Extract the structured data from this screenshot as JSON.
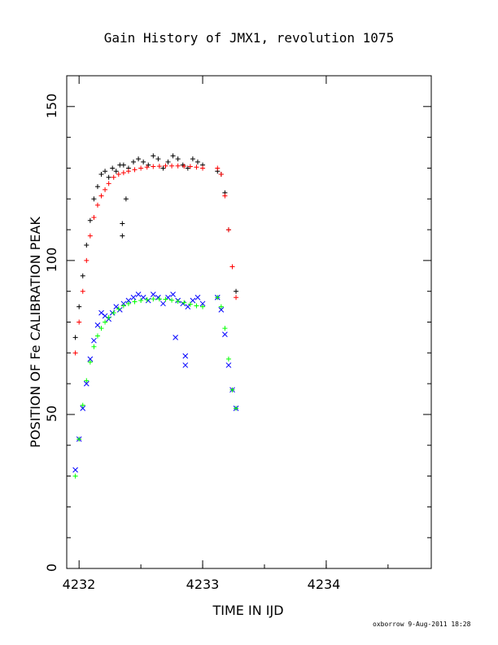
{
  "chart_data": {
    "type": "scatter",
    "title": "Gain History of JMX1, revolution 1075",
    "xlabel": "TIME IN IJD",
    "ylabel": "POSITION OF Fe CALIBRATION PEAK",
    "xlim": [
      4231.9,
      4234.85
    ],
    "ylim": [
      0,
      160
    ],
    "x_ticks": [
      "4232",
      "4233",
      "4234"
    ],
    "y_ticks": [
      "0",
      "50",
      "100",
      "150"
    ],
    "grid": false,
    "series": [
      {
        "marker": "plus",
        "color": "#000000",
        "x": [
          4231.97,
          4232.0,
          4232.03,
          4232.06,
          4232.09,
          4232.12,
          4232.15,
          4232.18,
          4232.21,
          4232.24,
          4232.27,
          4232.3,
          4232.33,
          4232.36,
          4232.4,
          4232.44,
          4232.48,
          4232.52,
          4232.56,
          4232.6,
          4232.64,
          4232.68,
          4232.72,
          4232.76,
          4232.8,
          4232.84,
          4232.88,
          4232.92,
          4232.96,
          4233.0,
          4233.12,
          4233.15,
          4233.18,
          4233.21,
          4233.24,
          4233.27,
          4232.35,
          4232.35,
          4232.38
        ],
        "y": [
          75,
          85,
          95,
          105,
          113,
          120,
          124,
          128,
          129,
          127,
          130,
          129,
          131,
          131,
          130,
          132,
          133,
          132,
          131,
          134,
          133,
          130,
          132,
          134,
          133,
          131,
          130,
          133,
          132,
          131,
          129,
          128,
          122,
          110,
          98,
          90,
          108,
          112,
          120
        ]
      },
      {
        "marker": "plus",
        "color": "#ff0000",
        "x": [
          4231.97,
          4232.0,
          4232.03,
          4232.06,
          4232.09,
          4232.12,
          4232.15,
          4232.18,
          4232.21,
          4232.24,
          4232.28,
          4232.32,
          4232.36,
          4232.4,
          4232.45,
          4232.5,
          4232.55,
          4232.6,
          4232.65,
          4232.7,
          4232.75,
          4232.8,
          4232.85,
          4232.9,
          4232.95,
          4233.0,
          4233.12,
          4233.15,
          4233.18,
          4233.21,
          4233.24,
          4233.27
        ],
        "y": [
          70,
          80,
          90,
          100,
          108,
          114,
          118,
          121,
          123,
          125,
          127,
          128,
          128.5,
          129,
          129.5,
          130,
          130.3,
          130.5,
          130.6,
          130.7,
          130.7,
          130.7,
          130.6,
          130.5,
          130.3,
          130,
          130,
          128,
          121,
          110,
          98,
          88
        ]
      },
      {
        "marker": "x",
        "color": "#0000ff",
        "x": [
          4231.97,
          4232.0,
          4232.03,
          4232.06,
          4232.09,
          4232.12,
          4232.15,
          4232.18,
          4232.21,
          4232.24,
          4232.27,
          4232.3,
          4232.33,
          4232.36,
          4232.4,
          4232.44,
          4232.48,
          4232.52,
          4232.56,
          4232.6,
          4232.64,
          4232.68,
          4232.72,
          4232.76,
          4232.8,
          4232.84,
          4232.88,
          4232.92,
          4232.96,
          4233.0,
          4233.12,
          4233.15,
          4233.18,
          4233.21,
          4233.24,
          4233.27,
          4232.86,
          4232.86,
          4232.78
        ],
        "y": [
          32,
          42,
          52,
          60,
          68,
          74,
          79,
          83,
          82,
          81,
          83,
          85,
          84,
          86,
          87,
          88,
          89,
          88,
          87,
          89,
          88,
          86,
          88,
          89,
          87,
          86,
          85,
          87,
          88,
          86,
          88,
          84,
          76,
          66,
          58,
          52,
          66,
          69,
          75
        ]
      },
      {
        "marker": "plus",
        "color": "#00ff00",
        "x": [
          4231.97,
          4232.0,
          4232.03,
          4232.06,
          4232.09,
          4232.12,
          4232.15,
          4232.18,
          4232.21,
          4232.24,
          4232.28,
          4232.32,
          4232.36,
          4232.4,
          4232.45,
          4232.5,
          4232.55,
          4232.6,
          4232.65,
          4232.7,
          4232.75,
          4232.8,
          4232.85,
          4232.9,
          4232.95,
          4233.0,
          4233.12,
          4233.15,
          4233.18,
          4233.21,
          4233.24,
          4233.27
        ],
        "y": [
          30,
          42,
          53,
          61,
          67,
          72,
          75.5,
          78,
          80,
          81.5,
          83,
          84.3,
          85.3,
          86,
          86.6,
          87,
          87.3,
          87.5,
          87.5,
          87.4,
          87.1,
          86.7,
          86.3,
          85.8,
          85.3,
          85,
          88,
          85,
          78,
          68,
          58,
          52
        ]
      }
    ]
  },
  "footer": {
    "credit": "oxborrow  9-Aug-2011 18:28"
  }
}
